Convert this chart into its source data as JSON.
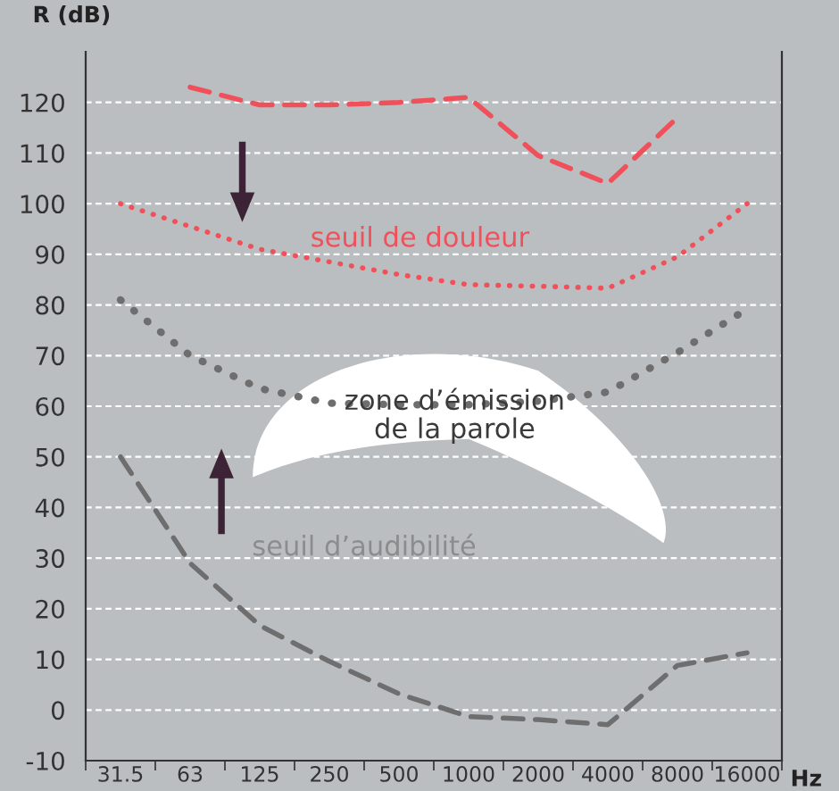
{
  "chart_data": {
    "type": "line",
    "ylabel": "R (dB)",
    "xlabel": "Hz",
    "categories": [
      "31.5",
      "63",
      "125",
      "250",
      "500",
      "1000",
      "2000",
      "4000",
      "8000",
      "16000"
    ],
    "series": [
      {
        "color": "#f0505a",
        "line_style": "dashed",
        "values": [
          null,
          123,
          119.5,
          119.5,
          120,
          121,
          109.5,
          104,
          117,
          null
        ]
      },
      {
        "color": "#f0505a",
        "line_style": "dotted",
        "values": [
          100,
          95.5,
          91,
          88.5,
          86,
          84,
          83.7,
          83.3,
          89.5,
          100
        ]
      },
      {
        "color": "#6e6e6e",
        "line_style": "dotted",
        "values": [
          81,
          70,
          63.5,
          60.6,
          60.3,
          60.3,
          61,
          62.8,
          70.6,
          79.2
        ]
      },
      {
        "color": "#6e6e6e",
        "line_style": "dashed",
        "values": [
          50,
          29,
          16.7,
          9.6,
          3.2,
          -1.3,
          -1.9,
          -2.9,
          8.8,
          11.3
        ]
      }
    ],
    "ylim": [
      -10,
      130
    ],
    "yticks": [
      -10,
      0,
      10,
      20,
      30,
      40,
      50,
      60,
      70,
      80,
      90,
      100,
      110,
      120
    ],
    "grid": "y",
    "legend": false,
    "marker": "none",
    "annotations": [
      "seuil de douleur",
      "zone d’émission\nde la parole",
      "seuil d’audibilité"
    ]
  }
}
